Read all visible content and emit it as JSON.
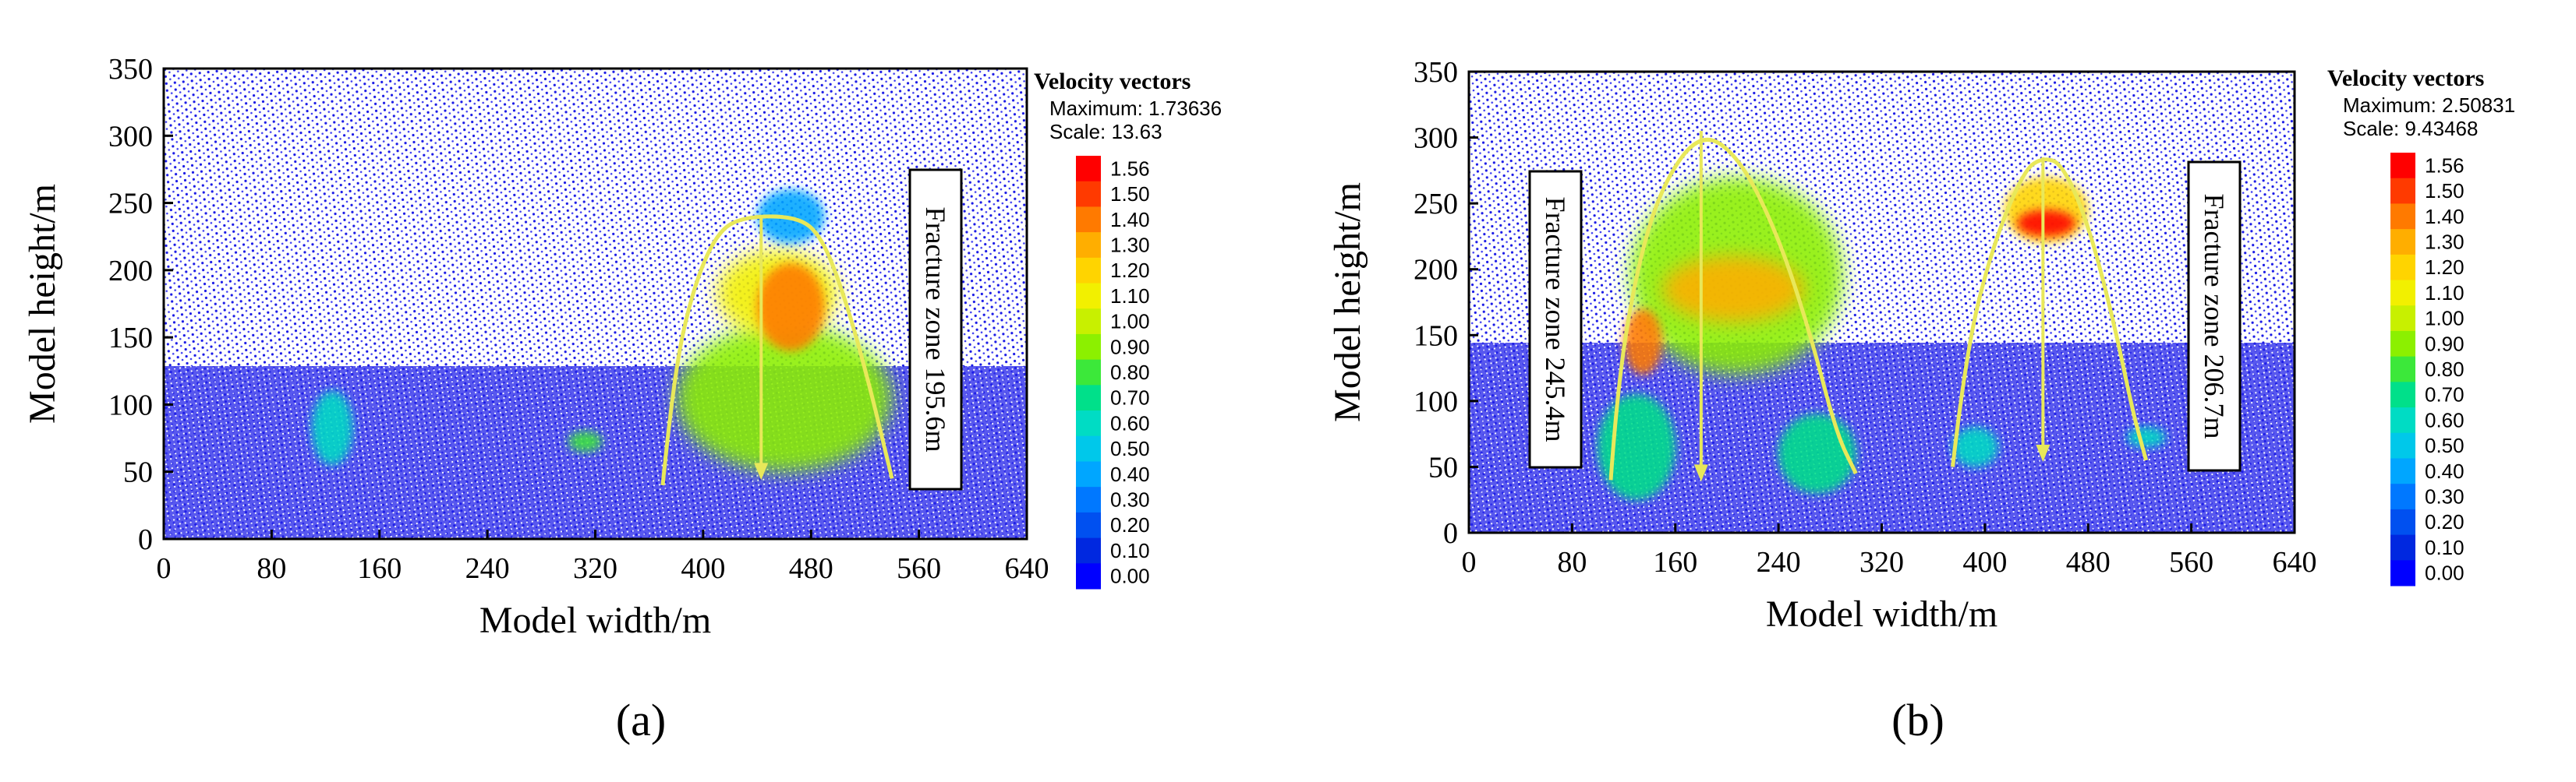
{
  "figure": {
    "panels": [
      {
        "caption": "(a)",
        "legend": {
          "title": "Velocity vectors",
          "maximum_text": "Maximum: 1.73636",
          "scale_text": "Scale: 13.63",
          "levels": [
            "1.56",
            "1.50",
            "1.40",
            "1.30",
            "1.20",
            "1.10",
            "1.00",
            "0.90",
            "0.80",
            "0.70",
            "0.60",
            "0.50",
            "0.40",
            "0.30",
            "0.20",
            "0.10",
            "0.00"
          ],
          "colors": [
            "#ff0000",
            "#ff3a00",
            "#ff7a00",
            "#ffae00",
            "#ffd400",
            "#f2f000",
            "#c8f000",
            "#8cf000",
            "#3ce83a",
            "#00e08a",
            "#00dcc4",
            "#00c8ea",
            "#00a6ff",
            "#0078ff",
            "#0050f0",
            "#0028e0",
            "#0000ff"
          ]
        },
        "annotations": [
          {
            "text": "Fracture zone 195.6m"
          }
        ]
      },
      {
        "caption": "(b)",
        "legend": {
          "title": "Velocity vectors",
          "maximum_text": "Maximum: 2.50831",
          "scale_text": "Scale: 9.43468",
          "levels": [
            "1.56",
            "1.50",
            "1.40",
            "1.30",
            "1.20",
            "1.10",
            "1.00",
            "0.90",
            "0.80",
            "0.70",
            "0.60",
            "0.50",
            "0.40",
            "0.30",
            "0.20",
            "0.10",
            "0.00"
          ],
          "colors": [
            "#ff0000",
            "#ff3a00",
            "#ff7a00",
            "#ffae00",
            "#ffd400",
            "#f2f000",
            "#c8f000",
            "#8cf000",
            "#3ce83a",
            "#00e08a",
            "#00dcc4",
            "#00c8ea",
            "#00a6ff",
            "#0078ff",
            "#0050f0",
            "#0028e0",
            "#0000ff"
          ]
        },
        "annotations": [
          {
            "text": "Fracture zone 245.4m"
          },
          {
            "text": "Fracture zone 206.7m"
          }
        ]
      }
    ]
  },
  "chart_data": [
    {
      "type": "heatmap",
      "title": "",
      "xlabel": "Model width/m",
      "ylabel": "Model height/m",
      "xlim": [
        0,
        640
      ],
      "ylim": [
        0,
        350
      ],
      "xticks": [
        0,
        80,
        160,
        240,
        320,
        400,
        480,
        560,
        640
      ],
      "yticks": [
        0,
        50,
        100,
        150,
        200,
        250,
        300,
        350
      ],
      "background_color": "#1f1fe6",
      "fracture_zones": [
        {
          "label": "Fracture zone 195.6m",
          "height_m": 195.6,
          "center_x": 443,
          "arch": [
            [
              370,
              40
            ],
            [
              378,
              120
            ],
            [
              392,
              185
            ],
            [
              410,
              228
            ],
            [
              430,
              240
            ],
            [
              470,
              240
            ],
            [
              488,
              225
            ],
            [
              505,
              180
            ],
            [
              522,
              120
            ],
            [
              540,
              45
            ]
          ],
          "arrow": {
            "x": 443,
            "y_top": 240,
            "y_bottom": 45
          }
        }
      ],
      "high_velocity_regions": [
        {
          "x": [
            380,
            540
          ],
          "y": [
            50,
            160
          ],
          "value": 0.9
        },
        {
          "x": [
            410,
            500
          ],
          "y": [
            150,
            215
          ],
          "value": 1.05
        },
        {
          "x": [
            440,
            490
          ],
          "y": [
            140,
            205
          ],
          "value": 1.4
        },
        {
          "x": [
            440,
            490
          ],
          "y": [
            220,
            260
          ],
          "value": 0.35
        },
        {
          "x": [
            110,
            140
          ],
          "y": [
            55,
            110
          ],
          "value": 0.55
        },
        {
          "x": [
            300,
            325
          ],
          "y": [
            65,
            80
          ],
          "value": 0.75
        }
      ]
    },
    {
      "type": "heatmap",
      "title": "",
      "xlabel": "Model width/m",
      "ylabel": "Model height/m",
      "xlim": [
        0,
        640
      ],
      "ylim": [
        0,
        350
      ],
      "xticks": [
        0,
        80,
        160,
        240,
        320,
        400,
        480,
        560,
        640
      ],
      "yticks": [
        0,
        50,
        100,
        150,
        200,
        250,
        300,
        350
      ],
      "background_color": "#1f1fe6",
      "fracture_zones": [
        {
          "label": "Fracture zone 245.4m",
          "height_m": 245.4,
          "center_x": 180,
          "arch": [
            [
              110,
              40
            ],
            [
              115,
              110
            ],
            [
              130,
              200
            ],
            [
              150,
              265
            ],
            [
              180,
              305
            ],
            [
              210,
              285
            ],
            [
              240,
              225
            ],
            [
              265,
              150
            ],
            [
              285,
              75
            ],
            [
              300,
              45
            ]
          ],
          "arrow": {
            "x": 180,
            "y_top": 305,
            "y_bottom": 40
          }
        },
        {
          "label": "Fracture zone 206.7m",
          "height_m": 206.7,
          "center_x": 445,
          "arch": [
            [
              375,
              50
            ],
            [
              385,
              135
            ],
            [
              405,
              215
            ],
            [
              430,
              275
            ],
            [
              445,
              285
            ],
            [
              460,
              280
            ],
            [
              480,
              235
            ],
            [
              500,
              160
            ],
            [
              515,
              90
            ],
            [
              525,
              55
            ]
          ],
          "arrow": {
            "x": 445,
            "y_top": 285,
            "y_bottom": 55
          }
        }
      ],
      "high_velocity_regions": [
        {
          "x": [
            125,
            290
          ],
          "y": [
            120,
            270
          ],
          "value": 0.9
        },
        {
          "x": [
            150,
            260
          ],
          "y": [
            160,
            210
          ],
          "value": 1.3
        },
        {
          "x": [
            120,
            150
          ],
          "y": [
            120,
            170
          ],
          "value": 1.4
        },
        {
          "x": [
            100,
            160
          ],
          "y": [
            25,
            105
          ],
          "value": 0.65
        },
        {
          "x": [
            240,
            300
          ],
          "y": [
            30,
            90
          ],
          "value": 0.65
        },
        {
          "x": [
            415,
            480
          ],
          "y": [
            220,
            270
          ],
          "value": 1.2
        },
        {
          "x": [
            425,
            470
          ],
          "y": [
            225,
            245
          ],
          "value": 1.56
        },
        {
          "x": [
            375,
            410
          ],
          "y": [
            50,
            80
          ],
          "value": 0.6
        },
        {
          "x": [
            510,
            540
          ],
          "y": [
            65,
            80
          ],
          "value": 0.6
        }
      ]
    }
  ]
}
